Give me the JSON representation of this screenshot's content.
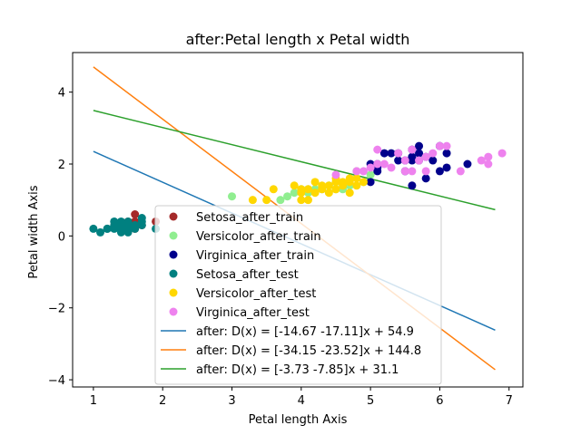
{
  "chart_data": {
    "type": "scatter",
    "title": "after:Petal length x Petal width",
    "xlabel": "Petal length Axis",
    "ylabel": "Petal width Axis",
    "xlim": [
      0.7,
      7.2
    ],
    "ylim": [
      -4.2,
      5.1
    ],
    "xticks": [
      1,
      2,
      3,
      4,
      5,
      6,
      7
    ],
    "yticks": [
      -4,
      -2,
      0,
      2,
      4
    ],
    "grid": false,
    "legend_position": "bottom-center",
    "series": [
      {
        "name": "Setosa_after_train",
        "kind": "scatter",
        "color": "#a52a2a",
        "points": [
          [
            1.6,
            0.6
          ],
          [
            1.6,
            0.4
          ],
          [
            1.9,
            0.4
          ],
          [
            1.5,
            0.4
          ],
          [
            1.6,
            0.2
          ],
          [
            1.7,
            0.3
          ],
          [
            1.5,
            0.2
          ]
        ]
      },
      {
        "name": "Versicolor_after_train",
        "kind": "scatter",
        "color": "#90ee90",
        "points": [
          [
            3.0,
            1.1
          ],
          [
            3.7,
            1.0
          ],
          [
            3.8,
            1.1
          ],
          [
            3.9,
            1.2
          ],
          [
            4.0,
            1.3
          ],
          [
            4.1,
            1.3
          ],
          [
            4.3,
            1.3
          ],
          [
            4.5,
            1.5
          ],
          [
            4.7,
            1.4
          ],
          [
            4.8,
            1.8
          ],
          [
            4.9,
            1.5
          ],
          [
            4.4,
            1.4
          ],
          [
            4.2,
            1.3
          ],
          [
            4.6,
            1.3
          ],
          [
            5.0,
            1.7
          ],
          [
            4.1,
            1.2
          ],
          [
            4.5,
            1.3
          ]
        ]
      },
      {
        "name": "Virginica_after_train",
        "kind": "scatter",
        "color": "#00008b",
        "points": [
          [
            5.0,
            1.5
          ],
          [
            5.1,
            1.8
          ],
          [
            5.1,
            2.0
          ],
          [
            5.2,
            2.3
          ],
          [
            5.3,
            2.3
          ],
          [
            5.4,
            2.1
          ],
          [
            5.5,
            2.1
          ],
          [
            5.6,
            2.4
          ],
          [
            5.6,
            1.4
          ],
          [
            5.6,
            2.2
          ],
          [
            5.7,
            2.5
          ],
          [
            5.7,
            2.3
          ],
          [
            5.8,
            2.2
          ],
          [
            5.8,
            1.6
          ],
          [
            5.9,
            2.1
          ],
          [
            6.0,
            1.8
          ],
          [
            6.1,
            1.9
          ],
          [
            6.1,
            2.3
          ],
          [
            6.4,
            2.0
          ],
          [
            5.0,
            2.0
          ],
          [
            5.1,
            1.9
          ],
          [
            5.4,
            2.3
          ],
          [
            5.5,
            1.8
          ],
          [
            5.6,
            2.1
          ],
          [
            5.7,
            2.1
          ],
          [
            6.0,
            2.5
          ]
        ]
      },
      {
        "name": "Setosa_after_test",
        "kind": "scatter",
        "color": "#008080",
        "points": [
          [
            1.0,
            0.2
          ],
          [
            1.1,
            0.1
          ],
          [
            1.2,
            0.2
          ],
          [
            1.3,
            0.2
          ],
          [
            1.3,
            0.4
          ],
          [
            1.4,
            0.2
          ],
          [
            1.4,
            0.1
          ],
          [
            1.4,
            0.3
          ],
          [
            1.5,
            0.2
          ],
          [
            1.5,
            0.1
          ],
          [
            1.5,
            0.4
          ],
          [
            1.6,
            0.2
          ],
          [
            1.7,
            0.4
          ],
          [
            1.7,
            0.5
          ],
          [
            1.4,
            0.4
          ],
          [
            1.5,
            0.3
          ],
          [
            1.6,
            0.3
          ],
          [
            1.2,
            0.2
          ],
          [
            1.3,
            0.3
          ],
          [
            1.7,
            0.3
          ],
          [
            1.9,
            0.2
          ]
        ]
      },
      {
        "name": "Versicolor_after_test",
        "kind": "scatter",
        "color": "#ffd700",
        "points": [
          [
            3.3,
            1.0
          ],
          [
            3.5,
            1.0
          ],
          [
            3.6,
            1.3
          ],
          [
            4.0,
            1.0
          ],
          [
            4.0,
            1.2
          ],
          [
            4.1,
            1.0
          ],
          [
            4.2,
            1.5
          ],
          [
            4.3,
            1.3
          ],
          [
            4.4,
            1.2
          ],
          [
            4.5,
            1.5
          ],
          [
            4.6,
            1.4
          ],
          [
            4.7,
            1.2
          ],
          [
            4.7,
            1.5
          ],
          [
            4.8,
            1.4
          ],
          [
            4.9,
            1.5
          ],
          [
            4.5,
            1.6
          ],
          [
            4.4,
            1.4
          ],
          [
            4.0,
            1.3
          ],
          [
            4.2,
            1.2
          ],
          [
            4.6,
            1.5
          ],
          [
            4.8,
            1.6
          ],
          [
            4.1,
            1.3
          ],
          [
            4.3,
            1.4
          ],
          [
            3.9,
            1.4
          ],
          [
            4.7,
            1.6
          ],
          [
            4.5,
            1.3
          ]
        ]
      },
      {
        "name": "Virginica_after_test",
        "kind": "scatter",
        "color": "#ee82ee",
        "points": [
          [
            4.5,
            1.7
          ],
          [
            4.9,
            1.8
          ],
          [
            5.0,
            1.9
          ],
          [
            5.1,
            2.4
          ],
          [
            5.2,
            2.0
          ],
          [
            5.3,
            1.9
          ],
          [
            5.5,
            1.8
          ],
          [
            5.6,
            1.8
          ],
          [
            5.7,
            2.1
          ],
          [
            5.8,
            1.8
          ],
          [
            5.8,
            2.2
          ],
          [
            5.9,
            2.3
          ],
          [
            6.0,
            2.5
          ],
          [
            6.1,
            2.5
          ],
          [
            6.3,
            1.8
          ],
          [
            6.6,
            2.1
          ],
          [
            6.7,
            2.2
          ],
          [
            6.7,
            2.0
          ],
          [
            6.9,
            2.3
          ],
          [
            5.4,
            2.3
          ],
          [
            5.1,
            2.0
          ],
          [
            5.6,
            2.4
          ],
          [
            5.5,
            2.1
          ],
          [
            4.8,
            1.8
          ]
        ]
      },
      {
        "name": "after: D(x) = [-14.67 -17.11]x + 54.9",
        "kind": "line",
        "color": "#1f77b4",
        "points": [
          [
            1.0,
            2.35
          ],
          [
            6.8,
            -2.62
          ]
        ]
      },
      {
        "name": "after: D(x) = [-34.15 -23.52]x + 144.8",
        "kind": "line",
        "color": "#ff7f0e",
        "points": [
          [
            1.0,
            4.7
          ],
          [
            6.8,
            -3.72
          ]
        ]
      },
      {
        "name": "after: D(x) = [-3.73 -7.85]x + 31.1",
        "kind": "line",
        "color": "#2ca02c",
        "points": [
          [
            1.0,
            3.49
          ],
          [
            6.8,
            0.73
          ]
        ]
      }
    ]
  }
}
